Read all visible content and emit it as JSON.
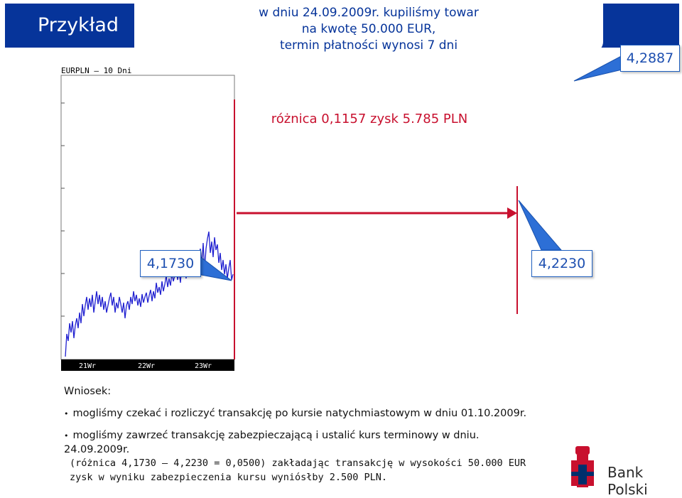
{
  "slide": {
    "title": "Przykład",
    "header_lines": [
      "w dniu 24.09.2009r. kupiliśmy towar",
      "na kwotę 50.000 EUR,",
      "termin płatności wynosi 7 dni"
    ],
    "forward_rate": "4,2887",
    "difference": "różnica  0,1157 zysk 5.785 PLN",
    "spot_rate_purchase": "4,1730",
    "spot_rate_settlement": "4,2230",
    "conclusion_label": "Wniosek:",
    "bullet_1": "mogliśmy czekać i rozliczyć transakcję po kursie natychmiastowym w dniu 01.10.2009r.",
    "bullet_2": "mogliśmy zawrzeć transakcję zabezpieczającą i ustalić kurs terminowy w dniu.",
    "line_3": "24.09.2009r.",
    "line_4": "(różnica 4,1730 – 4,2230 = 0,0500) zakładając transakcję w wysokości 50.000 EUR",
    "line_5": "zysk w wyniku zabezpieczenia kursu wyniósłby  2.500 PLN.",
    "logo_text": "Bank Polski"
  },
  "chart_data": {
    "type": "line",
    "title": "EURPLN – 10 Dni",
    "x_ticks": [
      "21Wr",
      "22Wr",
      "23Wr"
    ],
    "colors": {
      "line": "#1f1fd0",
      "background": "#ffffff"
    }
  },
  "colors": {
    "brand": "#06349a",
    "accent": "#c8102e",
    "logo_red": "#c8102e"
  }
}
